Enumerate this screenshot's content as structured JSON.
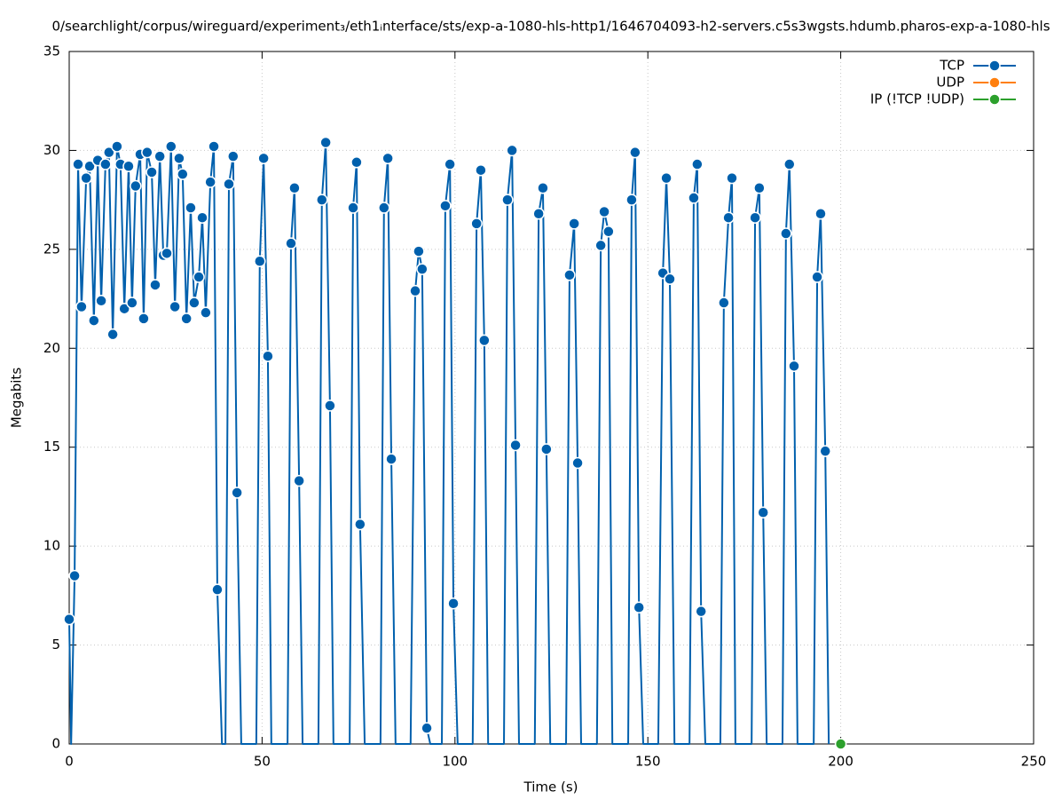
{
  "chart_data": {
    "type": "line",
    "title": "0/searchlight/corpus/wireguard/experiment₃/eth1ᵢnterface/sts/exp-a-1080-hls-http1/1646704093-h2-servers.c5s3wgsts.hdumb.pharos-exp-a-1080-hls",
    "x_label": "Time (s)",
    "y_label": "Megabits",
    "xlim": [
      0,
      250
    ],
    "xticks": [
      0,
      50,
      100,
      150,
      200,
      250
    ],
    "ylim": [
      0,
      35
    ],
    "yticks": [
      0,
      5,
      10,
      15,
      20,
      25,
      30,
      35
    ],
    "grid": true,
    "legend": "top-right",
    "series": [
      {
        "name": "TCP",
        "color": "#0060ad",
        "x": [
          0,
          0.5,
          1.4,
          2.3,
          3.2,
          4.4,
          5.3,
          6.4,
          7.4,
          8.3,
          9.4,
          10.3,
          11.3,
          12.4,
          13.3,
          14.3,
          15.4,
          16.3,
          17.2,
          18.4,
          19.3,
          20.2,
          21.4,
          22.3,
          23.5,
          24.4,
          25.3,
          26.4,
          27.4,
          28.5,
          29.4,
          30.4,
          31.5,
          32.4,
          33.6,
          34.5,
          35.4,
          36.6,
          37.5,
          38.4,
          39.6,
          40.5,
          41.4,
          42.5,
          43.5,
          44.6,
          48.5,
          49.4,
          50.4,
          51.5,
          52.4,
          56.6,
          57.5,
          58.4,
          59.6,
          60.5,
          64.6,
          65.5,
          66.5,
          67.6,
          68.5,
          72.7,
          73.6,
          74.5,
          75.4,
          76.6,
          80.7,
          81.6,
          82.6,
          83.5,
          84.6,
          88.5,
          89.7,
          90.6,
          91.5,
          92.7,
          93.6,
          96.6,
          97.5,
          98.7,
          99.6,
          100.7,
          104.6,
          105.6,
          106.7,
          107.6,
          108.6,
          112.7,
          113.6,
          114.8,
          115.7,
          116.6,
          120.7,
          121.7,
          122.8,
          123.7,
          124.7,
          128.8,
          129.7,
          130.9,
          131.8,
          132.7,
          136.8,
          137.8,
          138.7,
          139.8,
          140.8,
          144.9,
          145.8,
          146.7,
          147.7,
          148.8,
          152.7,
          153.9,
          154.8,
          155.7,
          156.9,
          160.8,
          161.9,
          162.8,
          163.8,
          164.9,
          168.8,
          169.7,
          170.9,
          171.8,
          172.7,
          176.9,
          177.8,
          178.9,
          179.9,
          180.8,
          184.9,
          185.8,
          186.7,
          187.9,
          188.8,
          193,
          193.9,
          194.8,
          196,
          196.9
        ],
        "values": [
          6.3,
          0,
          8.5,
          29.3,
          22.1,
          28.6,
          29.2,
          21.4,
          29.5,
          22.4,
          29.3,
          29.9,
          20.7,
          30.2,
          29.3,
          22.0,
          29.2,
          22.3,
          28.2,
          29.8,
          21.5,
          29.9,
          28.9,
          23.2,
          29.7,
          24.7,
          24.8,
          30.2,
          22.1,
          29.6,
          28.8,
          21.5,
          27.1,
          22.3,
          23.6,
          26.6,
          21.8,
          28.4,
          30.2,
          7.8,
          0,
          0,
          28.3,
          29.7,
          12.7,
          0,
          0,
          24.4,
          29.6,
          19.6,
          0,
          0,
          25.3,
          28.1,
          13.3,
          0,
          0,
          27.5,
          30.4,
          17.1,
          0,
          0,
          27.1,
          29.4,
          11.1,
          0,
          0,
          27.1,
          29.6,
          14.4,
          0,
          0,
          22.9,
          24.9,
          24.0,
          0.8,
          0,
          0,
          27.2,
          29.3,
          7.1,
          0,
          0,
          26.3,
          29.0,
          20.4,
          0,
          0,
          27.5,
          30.0,
          15.1,
          0,
          0,
          26.8,
          28.1,
          14.9,
          0,
          0,
          23.7,
          26.3,
          14.2,
          0,
          0,
          25.2,
          26.9,
          25.9,
          0,
          0,
          27.5,
          29.9,
          6.9,
          0,
          0,
          23.8,
          28.6,
          23.5,
          0,
          0,
          27.6,
          29.3,
          6.7,
          0,
          0,
          22.3,
          26.6,
          28.6,
          0,
          0,
          26.6,
          28.1,
          11.7,
          0,
          0,
          25.8,
          29.3,
          19.1,
          0,
          0,
          23.6,
          26.8,
          14.8,
          0
        ]
      },
      {
        "name": "UDP",
        "color": "#ff7f0e",
        "x": [],
        "values": []
      },
      {
        "name": "IP (!TCP  !UDP)",
        "color": "#2ca02c",
        "x": [
          200
        ],
        "values": [
          0
        ]
      }
    ]
  }
}
